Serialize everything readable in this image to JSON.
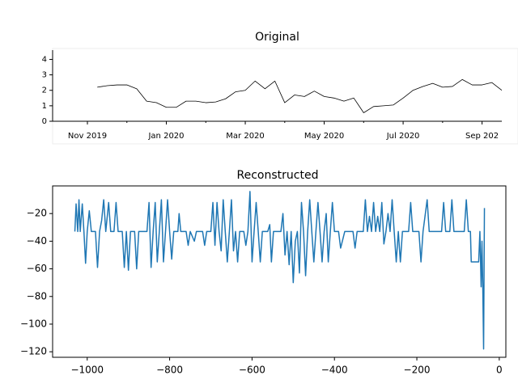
{
  "chart_data": [
    {
      "type": "line",
      "title": "Original",
      "categories": [
        "Nov 2019",
        null,
        null,
        null,
        null,
        null,
        null,
        null,
        "Jan 2020",
        null,
        null,
        null,
        null,
        null,
        null,
        null,
        "Mar 2020",
        null,
        null,
        null,
        null,
        null,
        null,
        null,
        "May 2020",
        null,
        null,
        null,
        null,
        null,
        null,
        null,
        "Jul 2020",
        null,
        null,
        null,
        null,
        null,
        null,
        null,
        "Sep 202",
        null,
        null
      ],
      "series": [
        {
          "color": "#000000",
          "values": [
            null,
            2.2,
            2.3,
            2.35,
            2.35,
            2.1,
            1.3,
            1.2,
            0.9,
            0.9,
            1.3,
            1.3,
            1.2,
            1.25,
            1.45,
            1.9,
            2.0,
            2.6,
            2.1,
            2.6,
            1.2,
            1.7,
            1.6,
            1.95,
            1.6,
            1.5,
            1.3,
            1.5,
            0.55,
            0.95,
            1.0,
            1.05,
            1.5,
            2.0,
            2.25,
            2.45,
            2.2,
            2.25,
            2.7,
            2.35,
            2.35,
            2.5,
            2.0
          ]
        }
      ],
      "ylim": [
        0,
        4.6
      ],
      "yticks": [
        0,
        1,
        2,
        3,
        4
      ]
    },
    {
      "type": "line",
      "title": "Reconstructed",
      "x": [
        -1030,
        -1027,
        -1023,
        -1020,
        -1017,
        -1012,
        -1008,
        -1004,
        -1000,
        -995,
        -990,
        -980,
        -975,
        -970,
        -965,
        -960,
        -955,
        -948,
        -943,
        -935,
        -930,
        -925,
        -915,
        -910,
        -905,
        -900,
        -895,
        -885,
        -880,
        -875,
        -855,
        -850,
        -845,
        -840,
        -835,
        -830,
        -825,
        -820,
        -815,
        -810,
        -805,
        -800,
        -795,
        -790,
        -780,
        -777,
        -773,
        -760,
        -755,
        -750,
        -740,
        -735,
        -720,
        -715,
        -710,
        -700,
        -695,
        -690,
        -685,
        -680,
        -675,
        -670,
        -665,
        -660,
        -655,
        -650,
        -645,
        -640,
        -635,
        -630,
        -620,
        -615,
        -610,
        -605,
        -600,
        -595,
        -590,
        -585,
        -580,
        -575,
        -562,
        -557,
        -553,
        -548,
        -530,
        -525,
        -520,
        -515,
        -510,
        -505,
        -500,
        -495,
        -490,
        -485,
        -480,
        -475,
        -470,
        -465,
        -460,
        -455,
        -450,
        -445,
        -440,
        -435,
        -430,
        -425,
        -420,
        -415,
        -410,
        -405,
        -400,
        -390,
        -385,
        -375,
        -355,
        -350,
        -345,
        -330,
        -325,
        -320,
        -315,
        -310,
        -305,
        -300,
        -295,
        -290,
        -285,
        -280,
        -275,
        -270,
        -265,
        -260,
        -255,
        -250,
        -245,
        -240,
        -235,
        -220,
        -215,
        -210,
        -195,
        -190,
        -185,
        -175,
        -170,
        -140,
        -135,
        -130,
        -120,
        -115,
        -110,
        -85,
        -80,
        -75,
        -70,
        -68,
        -50,
        -47,
        -44,
        -42,
        -40,
        -38,
        -36
      ],
      "series": [
        {
          "color": "#1f77b4",
          "values": [
            -33,
            -13,
            -33,
            -10,
            -33,
            -13,
            -33,
            -56,
            -33,
            -18,
            -33,
            -33,
            -59,
            -33,
            -25,
            -10,
            -33,
            -12,
            -33,
            -33,
            -12,
            -33,
            -33,
            -59,
            -33,
            -61,
            -33,
            -33,
            -60,
            -33,
            -33,
            -12,
            -59,
            -33,
            -12,
            -55,
            -33,
            -10,
            -55,
            -33,
            -10,
            -33,
            -53,
            -33,
            -33,
            -20,
            -33,
            -33,
            -43,
            -33,
            -40,
            -33,
            -33,
            -43,
            -33,
            -33,
            -12,
            -43,
            -12,
            -33,
            -47,
            -10,
            -33,
            -55,
            -33,
            -10,
            -47,
            -33,
            -55,
            -33,
            -33,
            -43,
            -33,
            -4,
            -55,
            -33,
            -12,
            -33,
            -55,
            -33,
            -33,
            -28,
            -55,
            -33,
            -33,
            -20,
            -50,
            -33,
            -57,
            -33,
            -70,
            -40,
            -33,
            -63,
            -12,
            -33,
            -65,
            -33,
            -10,
            -33,
            -55,
            -33,
            -12,
            -33,
            -55,
            -33,
            -20,
            -55,
            -33,
            -12,
            -33,
            -33,
            -45,
            -33,
            -33,
            -45,
            -33,
            -33,
            -10,
            -33,
            -22,
            -33,
            -12,
            -33,
            -22,
            -33,
            -12,
            -42,
            -33,
            -20,
            -33,
            -10,
            -33,
            -55,
            -33,
            -55,
            -33,
            -33,
            -12,
            -33,
            -33,
            -55,
            -33,
            -10,
            -33,
            -33,
            -12,
            -33,
            -33,
            -10,
            -33,
            -33,
            -10,
            -33,
            -33,
            -55,
            -55,
            -33,
            -73,
            -40,
            -73,
            -118,
            -16
          ]
        }
      ],
      "xlim": [
        -1084,
        16
      ],
      "xticks": [
        {
          "value": -1000,
          "label": "−1000"
        },
        {
          "value": -800,
          "label": "−800"
        },
        {
          "value": -600,
          "label": "−600"
        },
        {
          "value": -400,
          "label": "−400"
        },
        {
          "value": -200,
          "label": "−200"
        },
        0
      ],
      "ylim": [
        -124,
        0
      ],
      "yticks": [
        {
          "value": -20,
          "label": "−20"
        },
        {
          "value": -40,
          "label": "−40"
        },
        {
          "value": -60,
          "label": "−60"
        },
        {
          "value": -80,
          "label": "−80"
        },
        {
          "value": -100,
          "label": "−100"
        },
        {
          "value": -120,
          "label": "−120"
        }
      ]
    }
  ]
}
